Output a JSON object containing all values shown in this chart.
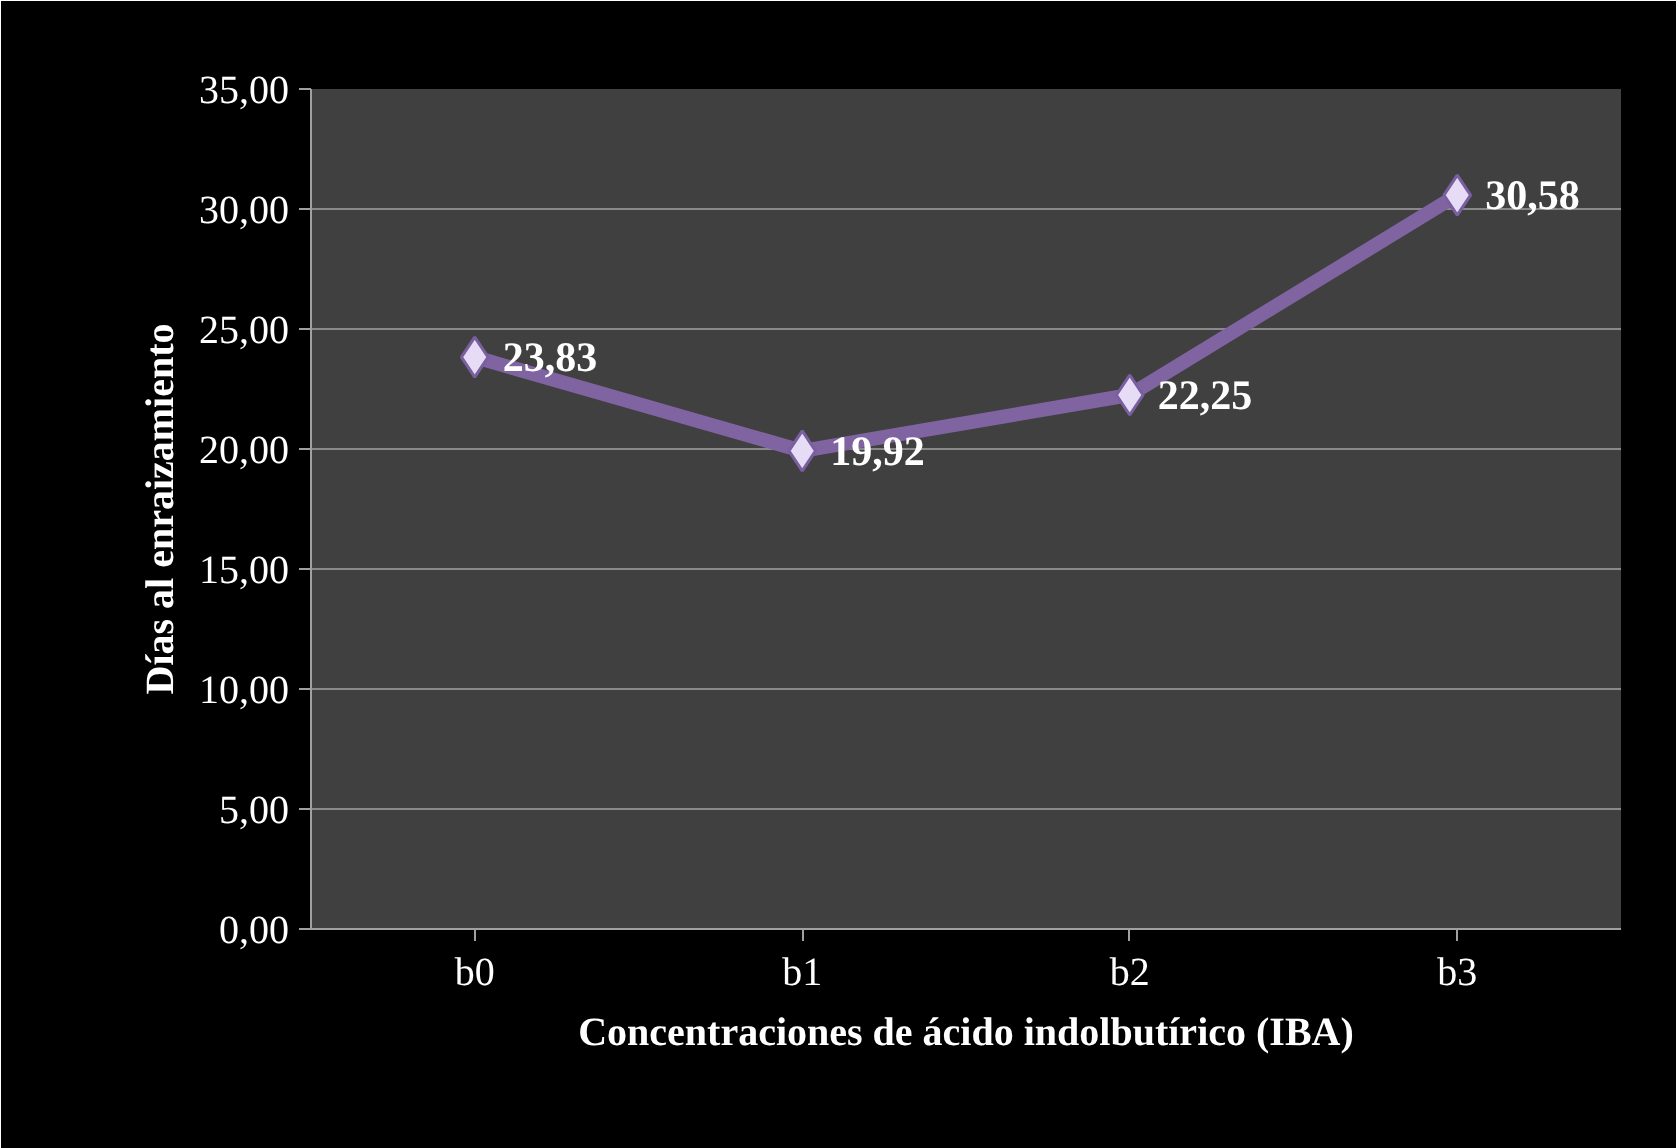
{
  "chart_data": {
    "type": "line",
    "xlabel": "Concentraciones de ácido indolbutírico (IBA)",
    "ylabel": "Días al enraizamiento",
    "categories": [
      "b0",
      "b1",
      "b2",
      "b3"
    ],
    "series": [
      {
        "color": "#8064a2",
        "values": [
          23.83,
          19.92,
          22.25,
          30.58
        ],
        "value_labels": [
          "23,83",
          "19,92",
          "22,25",
          "30,58"
        ]
      }
    ],
    "ylim": [
      0,
      35
    ],
    "yticks": [
      {
        "value": 0,
        "label": "0,00"
      },
      {
        "value": 5,
        "label": "5,00"
      },
      {
        "value": 10,
        "label": "10,00"
      },
      {
        "value": 15,
        "label": "15,00"
      },
      {
        "value": 20,
        "label": "20,00"
      },
      {
        "value": 25,
        "label": "25,00"
      },
      {
        "value": 30,
        "label": "30,00"
      },
      {
        "value": 35,
        "label": "35,00"
      }
    ],
    "grid": "y",
    "marker": "diamond",
    "line_style": "solid"
  }
}
